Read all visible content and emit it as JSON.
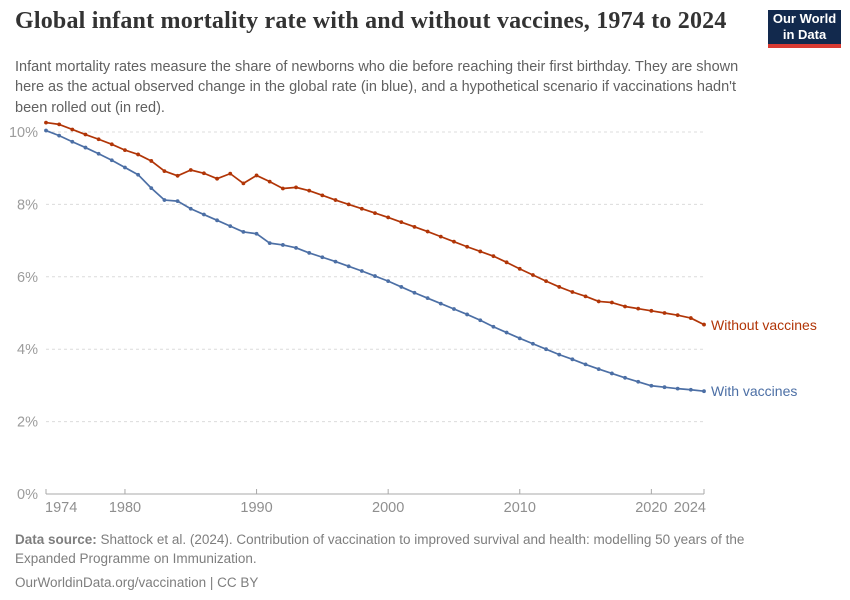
{
  "chart_data": {
    "type": "line",
    "title": "Global infant mortality rate with and without vaccines, 1974 to 2024",
    "subtitle": "Infant mortality rates measure the share of newborns who die before reaching their first birthday. They are shown here as the actual observed change in the global rate (in blue), and a hypothetical scenario if vaccinations hadn't been rolled out (in red).",
    "x": [
      1974,
      1975,
      1976,
      1977,
      1978,
      1979,
      1980,
      1981,
      1982,
      1983,
      1984,
      1985,
      1986,
      1987,
      1988,
      1989,
      1990,
      1991,
      1992,
      1993,
      1994,
      1995,
      1996,
      1997,
      1998,
      1999,
      2000,
      2001,
      2002,
      2003,
      2004,
      2005,
      2006,
      2007,
      2008,
      2009,
      2010,
      2011,
      2012,
      2013,
      2014,
      2015,
      2016,
      2017,
      2018,
      2019,
      2020,
      2021,
      2022,
      2023,
      2024
    ],
    "series": [
      {
        "name": "Without vaccines",
        "color": "#b13507",
        "values": [
          10.26,
          10.21,
          10.07,
          9.93,
          9.8,
          9.66,
          9.5,
          9.38,
          9.2,
          8.92,
          8.79,
          8.95,
          8.86,
          8.71,
          8.85,
          8.58,
          8.8,
          8.63,
          8.44,
          8.47,
          8.38,
          8.25,
          8.12,
          8.0,
          7.88,
          7.76,
          7.64,
          7.51,
          7.38,
          7.25,
          7.11,
          6.97,
          6.83,
          6.7,
          6.57,
          6.4,
          6.22,
          6.05,
          5.88,
          5.72,
          5.58,
          5.46,
          5.32,
          5.29,
          5.18,
          5.12,
          5.06,
          5.0,
          4.94,
          4.86,
          4.68
        ]
      },
      {
        "name": "With vaccines",
        "color": "#4c6fa5",
        "values": [
          10.04,
          9.9,
          9.73,
          9.57,
          9.4,
          9.22,
          9.02,
          8.82,
          8.45,
          8.12,
          8.09,
          7.88,
          7.72,
          7.56,
          7.4,
          7.24,
          7.19,
          6.93,
          6.88,
          6.8,
          6.66,
          6.54,
          6.42,
          6.29,
          6.16,
          6.02,
          5.88,
          5.72,
          5.56,
          5.41,
          5.26,
          5.11,
          4.96,
          4.8,
          4.62,
          4.46,
          4.3,
          4.15,
          4.0,
          3.85,
          3.72,
          3.58,
          3.45,
          3.33,
          3.21,
          3.1,
          2.99,
          2.95,
          2.91,
          2.88,
          2.84
        ]
      }
    ],
    "xlabel": "",
    "ylabel": "",
    "ylim": [
      0,
      10.6
    ],
    "xlim": [
      1974,
      2024
    ],
    "y_ticks": [
      {
        "value": 0,
        "label": "0%"
      },
      {
        "value": 2,
        "label": "2%"
      },
      {
        "value": 4,
        "label": "4%"
      },
      {
        "value": 6,
        "label": "6%"
      },
      {
        "value": 8,
        "label": "8%"
      },
      {
        "value": 10,
        "label": "10%"
      }
    ],
    "x_ticks": [
      1974,
      1980,
      1990,
      2000,
      2010,
      2020,
      2024
    ],
    "grid": "horizontal-dashed",
    "legend_position": "right-of-line-ends"
  },
  "logo": {
    "line1": "Our World",
    "line2": "in Data",
    "bg": "#12294d",
    "accent": "#d93a32"
  },
  "footer": {
    "source_label": "Data source:",
    "source_text": " Shattock et al. (2024). Contribution of vaccination to improved survival and health: modelling 50 years of the Expanded Programme on Immunization.",
    "url": "OurWorldinData.org/vaccination",
    "license": " | CC BY"
  }
}
